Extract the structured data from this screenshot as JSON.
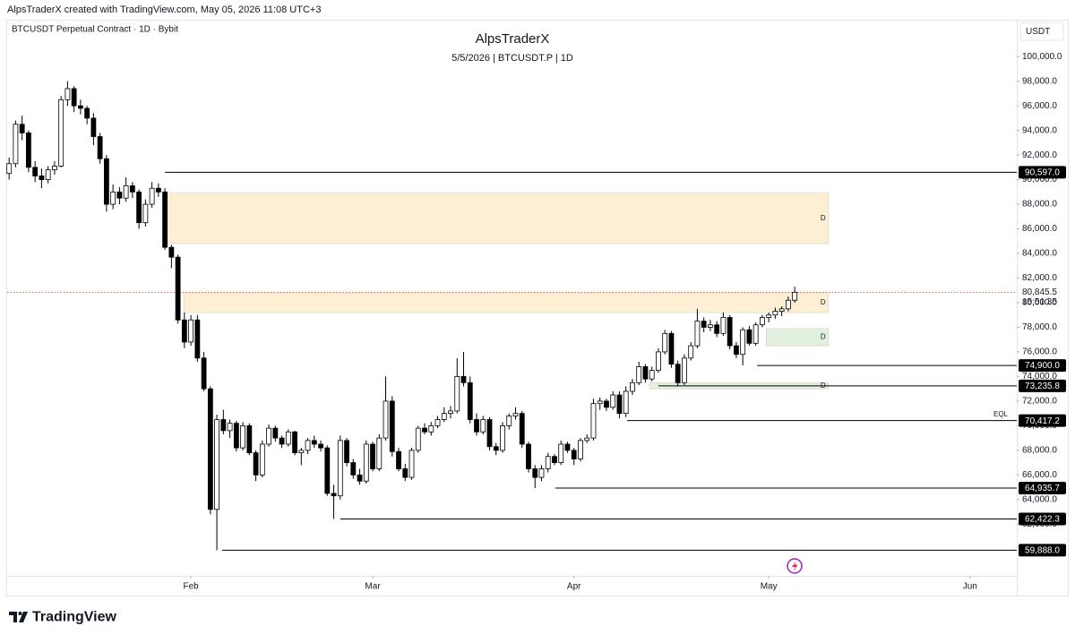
{
  "header": {
    "credit": "AlpsTraderX created with TradingView.com, May 05, 2026 11:08 UTC+3"
  },
  "footer": {
    "brand": "TradingView"
  },
  "chart_data": {
    "type": "candlestick",
    "symbol": "BTCUSDT Perpetual Contract · 1D · Bybit",
    "title": "AlpsTraderX",
    "subtitle": "5/5/2026 | BTCUSDT.P | 1D",
    "currency": "USDT",
    "up_color": "#ffffff",
    "down_color": "#000000",
    "border_color": "#000000",
    "xlim": [
      -0.3,
      155.2
    ],
    "xticks": [
      {
        "value": 28,
        "label": "Feb"
      },
      {
        "value": 56,
        "label": "Mar"
      },
      {
        "value": 87,
        "label": "Apr"
      },
      {
        "value": 117,
        "label": "May"
      },
      {
        "value": 148,
        "label": "Jun"
      }
    ],
    "ylim": [
      57800,
      103000
    ],
    "yticks": [
      {
        "value": 62000,
        "label": "62,000.0"
      },
      {
        "value": 64000,
        "label": "64,000.0"
      },
      {
        "value": 66000,
        "label": "66,000.0"
      },
      {
        "value": 68000,
        "label": "68,000.0"
      },
      {
        "value": 70000,
        "label": "70,000.0"
      },
      {
        "value": 72000,
        "label": "72,000.0"
      },
      {
        "value": 74000,
        "label": "74,000.0"
      },
      {
        "value": 76000,
        "label": "76,000.0"
      },
      {
        "value": 78000,
        "label": "78,000.0"
      },
      {
        "value": 80000,
        "label": "80,000.0"
      },
      {
        "value": 82000,
        "label": "82,000.0"
      },
      {
        "value": 84000,
        "label": "84,000.0"
      },
      {
        "value": 86000,
        "label": "86,000.0"
      },
      {
        "value": 88000,
        "label": "88,000.0"
      },
      {
        "value": 90000,
        "label": "90,000.0"
      },
      {
        "value": 92000,
        "label": "92,000.0"
      },
      {
        "value": 94000,
        "label": "94,000.0"
      },
      {
        "value": 96000,
        "label": "96,000.0"
      },
      {
        "value": 98000,
        "label": "98,000.0"
      },
      {
        "value": 100000,
        "label": "100,000.0"
      }
    ],
    "open": [
      90500,
      91300,
      94500,
      93800,
      91000,
      90300,
      90000,
      90800,
      91100,
      96500,
      97400,
      96000,
      95800,
      95000,
      93500,
      91700,
      88000,
      89000,
      88500,
      89500,
      89000,
      86500,
      88000,
      89300,
      89000,
      84500,
      83700,
      78600,
      76800,
      78600,
      75500,
      73000,
      63200,
      70500,
      69600,
      70200,
      68200,
      70000,
      67800,
      66000,
      68500,
      69800,
      69000,
      68500,
      69500,
      67800,
      68000,
      68800,
      68500,
      68200,
      64500,
      64300,
      68800,
      67000,
      66000,
      65500,
      68500,
      66500,
      69000,
      72000,
      67900,
      66500,
      65800,
      68000,
      69800,
      69500,
      70000,
      70500,
      71000,
      71200,
      74000,
      73500,
      70500,
      69500,
      70500,
      68300,
      68000,
      70000,
      70800,
      71000,
      68500,
      66500,
      65800,
      66500,
      67500,
      67000,
      68500,
      68000,
      67300,
      68800,
      69000,
      71800,
      72000,
      71500,
      72500,
      71000,
      72800,
      73500,
      74800,
      73800,
      74500,
      76000,
      77500,
      75000,
      73500,
      75500,
      76500,
      78500,
      78000,
      78200,
      77500,
      78800,
      76500,
      75800,
      77800,
      76700,
      78200,
      78800,
      79000,
      79300,
      79500,
      80200
    ],
    "high": [
      91800,
      94800,
      95200,
      94000,
      91500,
      90900,
      91100,
      91500,
      96800,
      98000,
      97600,
      96500,
      96000,
      95400,
      93800,
      92000,
      89600,
      89400,
      90200,
      89800,
      89200,
      88400,
      89800,
      89700,
      89300,
      84700,
      83900,
      79200,
      79000,
      79000,
      76000,
      73200,
      70900,
      71300,
      70500,
      70400,
      70300,
      70200,
      68000,
      68800,
      70100,
      70000,
      69200,
      69700,
      69600,
      68200,
      69000,
      69200,
      68800,
      68400,
      65200,
      69200,
      69000,
      67300,
      66500,
      68800,
      68700,
      69300,
      74000,
      72400,
      68200,
      66900,
      68200,
      70000,
      70200,
      70300,
      70800,
      71500,
      71600,
      75500,
      76000,
      74000,
      71000,
      70800,
      70700,
      68600,
      70300,
      71000,
      71500,
      71200,
      68700,
      66800,
      66800,
      67800,
      67700,
      68800,
      68700,
      68200,
      69000,
      69300,
      72200,
      72300,
      72200,
      72800,
      72800,
      73200,
      73800,
      75200,
      75000,
      74800,
      76300,
      77800,
      77700,
      75300,
      75800,
      76800,
      79500,
      78800,
      78600,
      78500,
      79200,
      79000,
      76800,
      78000,
      78100,
      78400,
      79000,
      79200,
      79600,
      79700,
      80500,
      81300
    ],
    "low": [
      90000,
      91000,
      93200,
      90600,
      89800,
      89300,
      89700,
      90400,
      91000,
      96000,
      95500,
      95300,
      94500,
      92800,
      91300,
      87400,
      87600,
      88000,
      88200,
      88500,
      86000,
      86200,
      87700,
      88600,
      84300,
      82800,
      78300,
      76300,
      76500,
      75200,
      72800,
      62800,
      59888,
      69300,
      69000,
      67900,
      68000,
      67600,
      65500,
      65800,
      68300,
      68700,
      68200,
      68300,
      67600,
      66800,
      67700,
      68200,
      67900,
      64300,
      62422,
      64000,
      66700,
      65700,
      65200,
      65300,
      66300,
      66300,
      68800,
      67500,
      66300,
      65500,
      65600,
      67800,
      69300,
      69200,
      69800,
      70300,
      70600,
      71000,
      73200,
      70200,
      69200,
      69300,
      68000,
      67600,
      67800,
      69700,
      70500,
      68200,
      66200,
      64936,
      65500,
      66200,
      66800,
      66800,
      67800,
      66800,
      67100,
      68600,
      68800,
      71300,
      71200,
      71300,
      70600,
      70700,
      72500,
      73300,
      73500,
      73600,
      74300,
      75800,
      74700,
      73200,
      73300,
      75300,
      76300,
      77600,
      77700,
      77200,
      77300,
      76200,
      75500,
      74900,
      76500,
      76500,
      78000,
      78400,
      78700,
      78900,
      79300,
      80000
    ],
    "close": [
      91300,
      94500,
      93800,
      91000,
      90300,
      90000,
      90800,
      91100,
      96500,
      97400,
      96000,
      95800,
      95000,
      93500,
      91700,
      88000,
      89000,
      88500,
      89500,
      89000,
      86500,
      88000,
      89300,
      89000,
      84500,
      83700,
      78600,
      76800,
      78600,
      75500,
      73000,
      63200,
      70500,
      69600,
      70200,
      68200,
      70000,
      67800,
      66000,
      68500,
      69800,
      69000,
      68500,
      69500,
      67800,
      68000,
      68800,
      68500,
      68200,
      64500,
      64300,
      68800,
      67000,
      66000,
      65500,
      68500,
      66500,
      69000,
      72000,
      67900,
      66500,
      65800,
      68000,
      69800,
      69500,
      70000,
      70500,
      71000,
      71200,
      74000,
      73500,
      70500,
      69500,
      70500,
      68300,
      68000,
      70000,
      70800,
      71000,
      68500,
      66500,
      65800,
      66500,
      67500,
      67000,
      68500,
      68000,
      67300,
      68800,
      69000,
      71800,
      72000,
      71500,
      72500,
      71000,
      72800,
      73500,
      74800,
      73800,
      74500,
      76000,
      77500,
      75000,
      73500,
      75500,
      76500,
      78500,
      78000,
      78200,
      77500,
      78800,
      76500,
      75800,
      77800,
      76700,
      78200,
      78800,
      79000,
      79300,
      79500,
      80200,
      80845.5
    ],
    "zones": [
      {
        "from": 24,
        "to": 126.2,
        "top": 88900,
        "bottom": 84800,
        "color": "#fcefd4",
        "label": "D"
      },
      {
        "from": 26.9,
        "to": 126.2,
        "top": 80800,
        "bottom": 79200,
        "color": "#fcefd4",
        "label": "D"
      },
      {
        "from": 116.6,
        "to": 126.2,
        "top": 77900,
        "bottom": 76500,
        "color": "#e2f0e0",
        "label": "D"
      },
      {
        "from": 98.6,
        "to": 126.2,
        "top": 73500,
        "bottom": 73000,
        "color": "#e2f0e0",
        "label": "D"
      }
    ],
    "levels": [
      {
        "value": 90597,
        "label": "90,597.0",
        "from": 24
      },
      {
        "value": 74900,
        "label": "74,900.0",
        "from": 115.2
      },
      {
        "value": 73235.8,
        "label": "73,235.8",
        "from": 100
      },
      {
        "value": 70417.2,
        "label": "70,417.2",
        "from": 95.2,
        "note": "EQL"
      },
      {
        "value": 64935.7,
        "label": "64,935.7",
        "from": 84.1
      },
      {
        "value": 62422.3,
        "label": "62,422.3",
        "from": 51
      },
      {
        "value": 59888,
        "label": "59,888.0",
        "from": 32.8
      }
    ],
    "last_price": {
      "value": 80845.5,
      "label": "80,845.5",
      "countdown": "15:51:35",
      "color": "#e53935"
    }
  }
}
